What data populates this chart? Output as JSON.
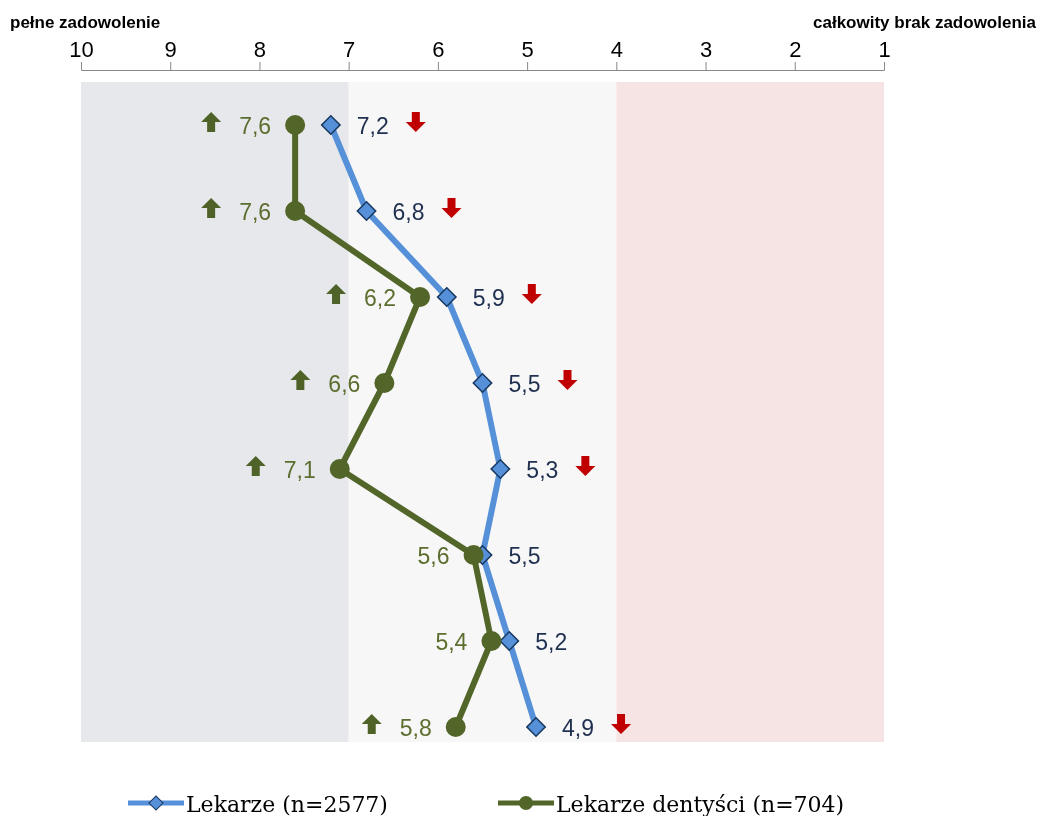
{
  "chart_data": {
    "type": "line",
    "orientation": "horizontal",
    "categories": [
      null,
      null,
      null,
      null,
      null,
      null,
      null,
      null
    ],
    "xlim": [
      10,
      1
    ],
    "xticks": [
      10,
      9,
      8,
      7,
      6,
      5,
      4,
      3,
      2,
      1
    ],
    "annotations": [
      "pełne zadowolenie",
      "całkowity brak zadowolenia"
    ],
    "bands": [
      {
        "axis": "x",
        "from": 10,
        "to": 7,
        "color": "#e7e8eb"
      },
      {
        "axis": "x",
        "from": 7,
        "to": 4,
        "color": "#f7f7f7"
      },
      {
        "axis": "x",
        "from": 4,
        "to": 1,
        "color": "#f6e4e4"
      }
    ],
    "legend": "bottom",
    "line_style": "solid",
    "series": [
      {
        "name": "Lekarze (n=2577)",
        "color": "#5590d8",
        "marker": "diamond",
        "values": [
          7.2,
          6.8,
          5.9,
          5.5,
          5.3,
          5.5,
          5.2,
          4.9
        ],
        "value_labels": [
          "7,2",
          "6,8",
          "5,9",
          "5,5",
          "5,3",
          "5,5",
          "5,2",
          "4,9"
        ]
      },
      {
        "name": "Lekarze dentyści (n=704)",
        "color": "#536629",
        "marker": "circle",
        "values": [
          7.6,
          7.6,
          6.2,
          6.6,
          7.1,
          5.6,
          5.4,
          5.8
        ],
        "value_labels": [
          "7,6",
          "7,6",
          "6,2",
          "6,6",
          "7,1",
          "5,6",
          "5,4",
          "5,8"
        ]
      }
    ]
  }
}
